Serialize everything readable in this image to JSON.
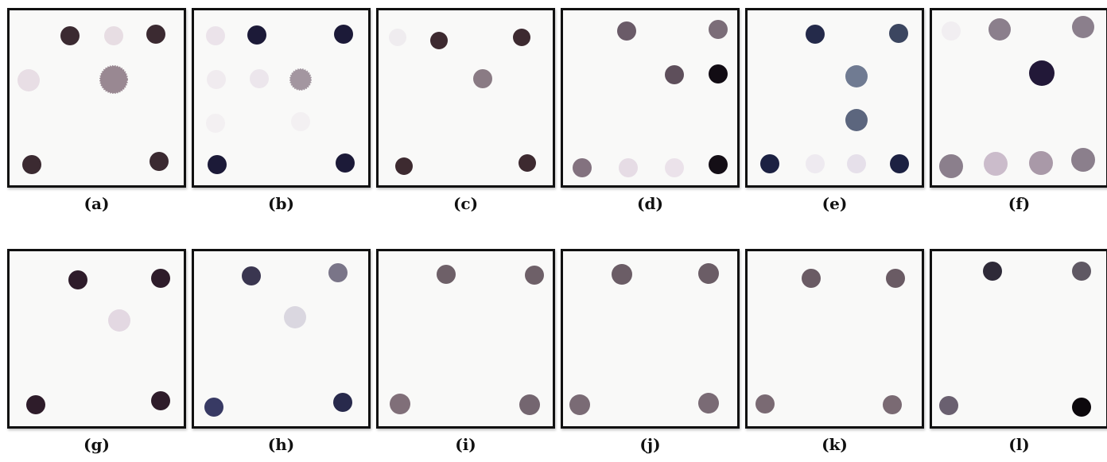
{
  "panels": [
    {
      "label": "(a)",
      "dots": [
        {
          "c": "#3b2a31"
        },
        {
          "c": "#e7dde3"
        },
        {
          "c": "#3b2a31"
        },
        {
          "c": "#e8dee5"
        },
        {
          "c": "#8f7c87",
          "ragged": true
        },
        {
          "c": "#3b2a31"
        },
        {
          "c": "#3b2a31"
        }
      ]
    },
    {
      "label": "(b)",
      "dots": [
        {
          "c": "#ebe3ea"
        },
        {
          "c": "#1c1a38"
        },
        {
          "c": "#1c1a38"
        },
        {
          "c": "#f0ebef"
        },
        {
          "c": "#ece6ec"
        },
        {
          "c": "#9a8c97",
          "ragged": true
        },
        {
          "c": "#f3f0f2"
        },
        {
          "c": "#f3f0f2"
        },
        {
          "c": "#1c1a38"
        },
        {
          "c": "#1c1a38"
        }
      ]
    },
    {
      "label": "(c)",
      "dots": [
        {
          "c": "#efecef"
        },
        {
          "c": "#3d2a30"
        },
        {
          "c": "#3d2a30"
        },
        {
          "c": "#8a7b84"
        },
        {
          "c": "#3d2a30"
        },
        {
          "c": "#3d2a30"
        }
      ]
    },
    {
      "label": "(d)",
      "dots": [
        {
          "c": "#6a5b68"
        },
        {
          "c": "#7b6d78"
        },
        {
          "c": "#5e4f5b"
        },
        {
          "c": "#120c14"
        },
        {
          "c": "#83727f"
        },
        {
          "c": "#e6dce5"
        },
        {
          "c": "#ebe2ea"
        },
        {
          "c": "#140e16"
        }
      ]
    },
    {
      "label": "(e)",
      "dots": [
        {
          "c": "#242a4a"
        },
        {
          "c": "#3c4660"
        },
        {
          "c": "#707b92"
        },
        {
          "c": "#5c667e"
        },
        {
          "c": "#1c2142"
        },
        {
          "c": "#eeeaf0"
        },
        {
          "c": "#e6e0ea"
        },
        {
          "c": "#1c2142"
        }
      ]
    },
    {
      "label": "(f)",
      "dots": [
        {
          "c": "#f1eef1"
        },
        {
          "c": "#8b7f8c"
        },
        {
          "c": "#8b7f8c"
        },
        {
          "c": "#221838"
        },
        {
          "c": "#8b7f8c"
        },
        {
          "c": "#cbbccb"
        },
        {
          "c": "#a999a8"
        },
        {
          "c": "#8b7f8c"
        }
      ]
    },
    {
      "label": "(g)",
      "dots": [
        {
          "c": "#2e1c2a"
        },
        {
          "c": "#2e1c2a"
        },
        {
          "c": "#e3d8e2"
        },
        {
          "c": "#2e1c2a"
        },
        {
          "c": "#2e1c2a"
        }
      ]
    },
    {
      "label": "(h)",
      "dots": [
        {
          "c": "#3a3650"
        },
        {
          "c": "#7a7588"
        },
        {
          "c": "#dad7e0"
        },
        {
          "c": "#383a64"
        },
        {
          "c": "#282a4c"
        }
      ]
    },
    {
      "label": "(i)",
      "dots": [
        {
          "c": "#6e6068"
        },
        {
          "c": "#6e6068"
        },
        {
          "c": "#806f79"
        },
        {
          "c": "#746670"
        }
      ]
    },
    {
      "label": "(j)",
      "dots": [
        {
          "c": "#6b5d66"
        },
        {
          "c": "#6b5d66"
        },
        {
          "c": "#7a6b75"
        },
        {
          "c": "#7a6b75"
        }
      ]
    },
    {
      "label": "(k)",
      "dots": [
        {
          "c": "#6a5b64"
        },
        {
          "c": "#6a5b64"
        },
        {
          "c": "#7a6a73"
        },
        {
          "c": "#7a6a73"
        }
      ]
    },
    {
      "label": "(l)",
      "dots": [
        {
          "c": "#2e2a38"
        },
        {
          "c": "#5f5863"
        },
        {
          "c": "#6a6070"
        },
        {
          "c": "#0c080c"
        }
      ]
    }
  ]
}
